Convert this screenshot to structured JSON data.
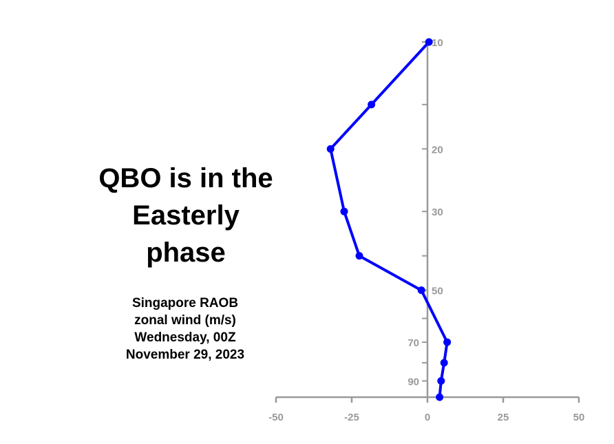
{
  "headline": {
    "line1": "QBO is in the",
    "line2": "Easterly",
    "line3": "phase"
  },
  "caption": {
    "line1": "Singapore RAOB",
    "line2": "zonal wind (m/s)",
    "line3": "Wednesday, 00Z",
    "line4": "November 29, 2023"
  },
  "chart_data": {
    "type": "line",
    "x_axis": {
      "range": [
        -50,
        50
      ],
      "ticks": [
        -50,
        -25,
        0,
        25,
        50
      ],
      "tick_labels": [
        "-50",
        "-25",
        "0",
        "25",
        "50"
      ]
    },
    "y_axis": {
      "scale": "log",
      "inverted": true,
      "range": [
        10,
        100
      ],
      "ticks": [
        10,
        15,
        20,
        30,
        40,
        50,
        60,
        70,
        80,
        90,
        100
      ],
      "tick_labels": [
        "10",
        "",
        "20",
        "30",
        "",
        "50",
        "",
        "70",
        "",
        "90",
        ""
      ]
    },
    "series": [
      {
        "color": "#0000ff",
        "points": [
          {
            "wind": 0.5,
            "pressure": 10
          },
          {
            "wind": -18.5,
            "pressure": 15
          },
          {
            "wind": -32,
            "pressure": 20
          },
          {
            "wind": -27.5,
            "pressure": 30
          },
          {
            "wind": -22.5,
            "pressure": 40
          },
          {
            "wind": -2,
            "pressure": 50
          },
          {
            "wind": 6.5,
            "pressure": 70
          },
          {
            "wind": 5.5,
            "pressure": 80
          },
          {
            "wind": 4.5,
            "pressure": 90
          },
          {
            "wind": 4,
            "pressure": 100
          }
        ]
      }
    ],
    "axis_color": "#999999",
    "grid": false
  }
}
